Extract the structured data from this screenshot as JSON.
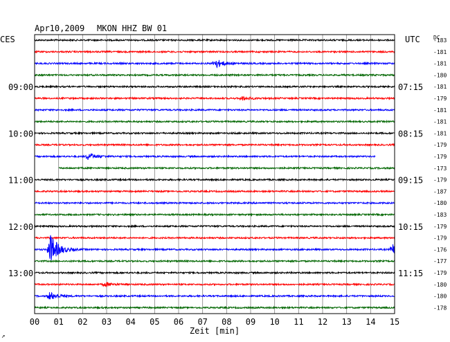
{
  "header": {
    "date": "Apr10,2009",
    "station": "MKON HHZ BW 01",
    "left_tz": "CES",
    "right_tz": "UTC",
    "dc_label": "DC"
  },
  "footer": {
    "corner_mark": "↗"
  },
  "chart_data": {
    "type": "line",
    "title": "Apr10,2009   MKON HHZ BW 01",
    "xlabel": "Zeit [min]",
    "ylabel": "",
    "xlim": [
      0,
      15
    ],
    "x_ticks": [
      "00",
      "01",
      "02",
      "03",
      "04",
      "05",
      "06",
      "07",
      "08",
      "09",
      "10",
      "11",
      "12",
      "13",
      "14",
      "15"
    ],
    "grid": true,
    "trace_colors": [
      "#000000",
      "#ff0000",
      "#0000ff",
      "#006600"
    ],
    "left_time_labels": [
      {
        "trace": 4,
        "label": "09:00"
      },
      {
        "trace": 8,
        "label": "10:00"
      },
      {
        "trace": 12,
        "label": "11:00"
      },
      {
        "trace": 16,
        "label": "12:00"
      },
      {
        "trace": 20,
        "label": "13:00"
      }
    ],
    "right_time_labels": [
      {
        "trace": 4,
        "label": "07:15"
      },
      {
        "trace": 8,
        "label": "08:15"
      },
      {
        "trace": 12,
        "label": "09:15"
      },
      {
        "trace": 16,
        "label": "10:15"
      },
      {
        "trace": 20,
        "label": "11:15"
      }
    ],
    "dc_offsets": [
      "-183",
      "-181",
      "-181",
      "-180",
      "-181",
      "-179",
      "-181",
      "-181",
      "-181",
      "-179",
      "-179",
      "-173",
      "-179",
      "-187",
      "-180",
      "-183",
      "-179",
      "-179",
      "-176",
      "-177",
      "-179",
      "-180",
      "-180",
      "-178"
    ],
    "events": [
      {
        "trace": 2,
        "minute": 7.5,
        "amplitude": 7
      },
      {
        "trace": 5,
        "minute": 8.6,
        "amplitude": 3
      },
      {
        "trace": 10,
        "minute": 2.2,
        "amplitude": 5
      },
      {
        "trace": 18,
        "minute": 0.6,
        "amplitude": 26
      },
      {
        "trace": 18,
        "minute": 14.9,
        "amplitude": 8
      },
      {
        "trace": 21,
        "minute": 2.9,
        "amplitude": 3
      },
      {
        "trace": 22,
        "minute": 0.6,
        "amplitude": 6
      }
    ],
    "gaps": [
      {
        "trace": 10,
        "from": 14.2,
        "to": 15
      },
      {
        "trace": 11,
        "from": 0,
        "to": 1.0
      }
    ]
  }
}
